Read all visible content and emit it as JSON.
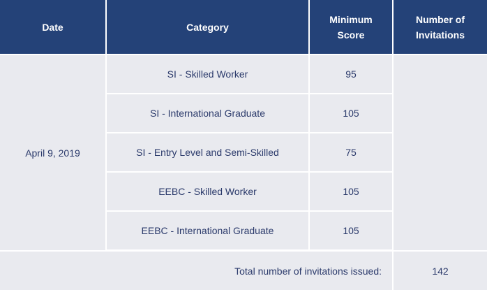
{
  "table": {
    "headers": [
      "Date",
      "Category",
      "Minimum Score",
      "Number of Invitations"
    ],
    "header_lines": {
      "score": [
        "Minimum",
        "Score"
      ],
      "invitations": [
        "Number of",
        "Invitations"
      ]
    },
    "date": "April 9, 2019",
    "rows": [
      {
        "category": "SI - Skilled Worker",
        "score": "95"
      },
      {
        "category": "SI - International Graduate",
        "score": "105"
      },
      {
        "category": "SI - Entry Level and Semi-Skilled",
        "score": "75"
      },
      {
        "category": "EEBC - Skilled Worker",
        "score": "105"
      },
      {
        "category": "EEBC - International Graduate",
        "score": "105"
      }
    ],
    "total_label": "Total number of invitations issued:",
    "total_value": "142"
  },
  "colors": {
    "header_bg": "#244278",
    "cell_bg": "#e9eaef",
    "text": "#2b3a6b"
  }
}
